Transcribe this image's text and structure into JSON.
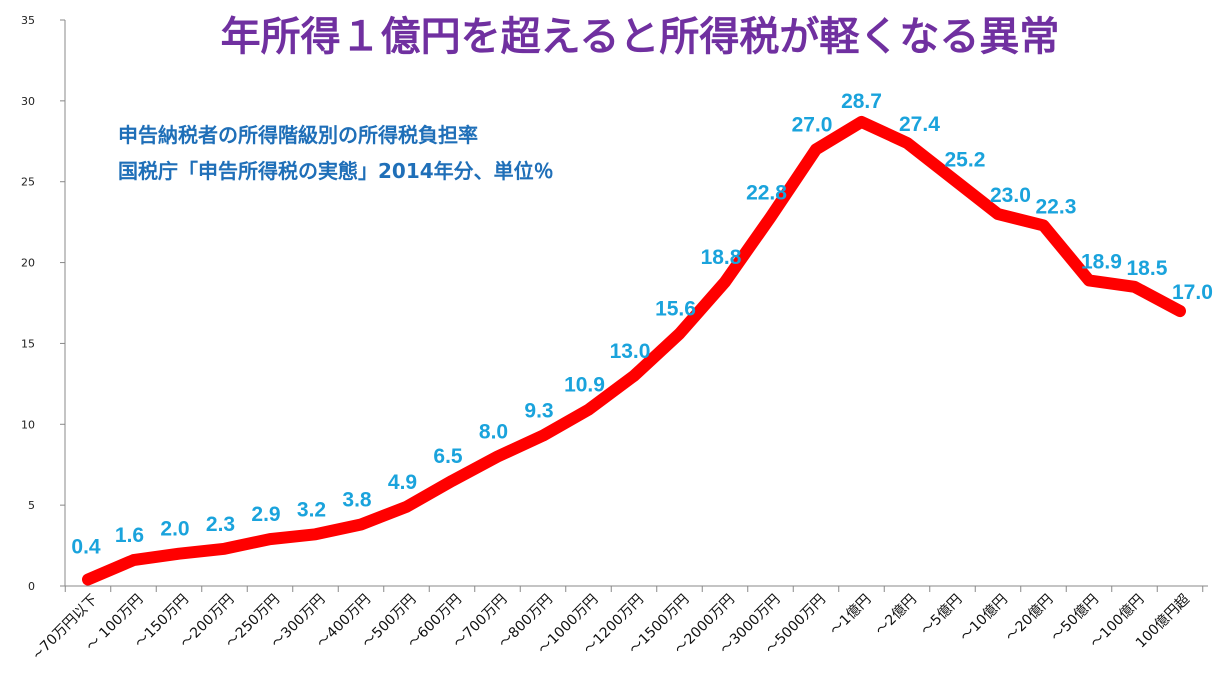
{
  "chart_data": {
    "type": "line",
    "title": "年所得１億円を超えると所得税が軽くなる異常",
    "subtitle_lines": [
      "申告納税者の所得階級別の所得税負担率",
      "国税庁「申告所得税の実態」2014年分、単位％"
    ],
    "categories": [
      "~70万円以下",
      "～ 100万円",
      "～150万円",
      "～200万円",
      "～250万円",
      "～300万円",
      "～400万円",
      "～500万円",
      "～600万円",
      "～700万円",
      "～800万円",
      "～1000万円",
      "～1200万円",
      "～1500万円",
      "～2000万円",
      "～3000万円",
      "～5000万円",
      "～1億円",
      "～2億円",
      "～5億円",
      "～10億円",
      "～20億円",
      "～50億円",
      "～100億円",
      "100億円超"
    ],
    "series": [
      {
        "values": [
          0.4,
          1.6,
          2.0,
          2.3,
          2.9,
          3.2,
          3.8,
          4.9,
          6.5,
          8.0,
          9.3,
          10.9,
          13.0,
          15.6,
          18.8,
          22.8,
          27.0,
          28.7,
          27.4,
          25.2,
          23.0,
          22.3,
          18.9,
          18.5,
          17.0
        ],
        "labels": [
          "0.4",
          "1.6",
          "2.0",
          "2.3",
          "2.9",
          "3.2",
          "3.8",
          "4.9",
          "6.5",
          "8.0",
          "9.3",
          "10.9",
          "13.0",
          "15.6",
          "18.8",
          "22.8",
          "27.0",
          "28.7",
          "27.4",
          "25.2",
          "23.0",
          "22.3",
          "18.9",
          "18.5",
          "17.0"
        ]
      }
    ],
    "y_ticks": [
      "0",
      "5",
      "10",
      "15",
      "20",
      "25",
      "30",
      "35"
    ],
    "ylim": [
      0,
      35
    ],
    "grid": false,
    "legend": "none",
    "colors": {
      "line": "#ff0000",
      "data_label": "#1aa3dc",
      "title": "#7030a0",
      "subtitle": "#1f6fb8",
      "axis": "#888888"
    }
  }
}
